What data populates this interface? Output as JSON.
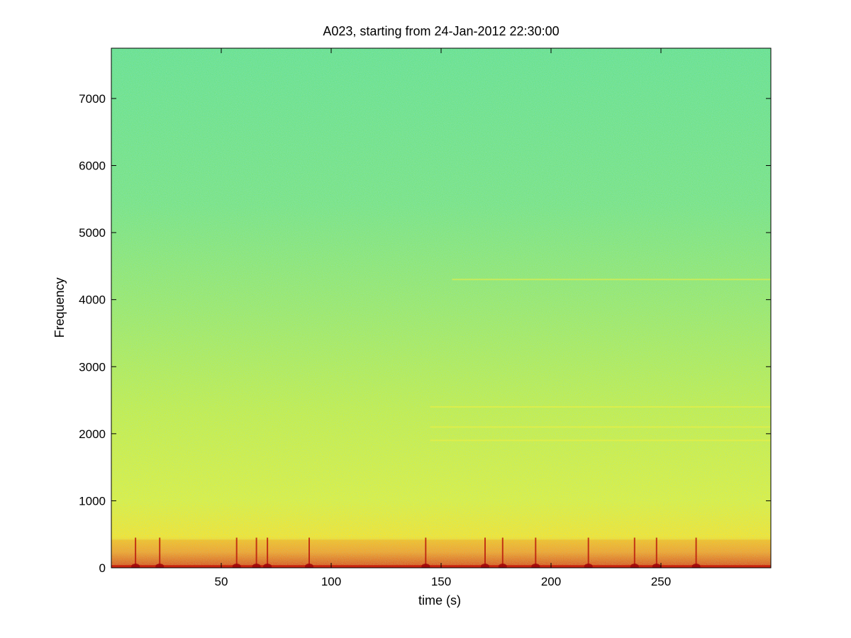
{
  "chart_data": {
    "type": "heatmap",
    "title": "A023, starting from 24-Jan-2012 22:30:00",
    "xlabel": "time (s)",
    "ylabel": "Frequency",
    "xlim": [
      0,
      300
    ],
    "ylim": [
      0,
      7750
    ],
    "x_ticks": [
      50,
      100,
      150,
      200,
      250
    ],
    "y_ticks": [
      0,
      1000,
      2000,
      3000,
      4000,
      5000,
      6000,
      7000
    ],
    "colormap": "jet",
    "colors": {
      "background_high_freq": "#5fe08a",
      "mid_band": "#c8ee3c",
      "low_band": "#ffe21a",
      "low_freq_energy": "#d42a10"
    },
    "notable_features": {
      "tonal_lines_hz": [
        4300,
        1900,
        2100,
        2400
      ],
      "transient_times_s": [
        11,
        22,
        57,
        66,
        71,
        90,
        143,
        170,
        178,
        193,
        217,
        238,
        248,
        266
      ]
    }
  }
}
